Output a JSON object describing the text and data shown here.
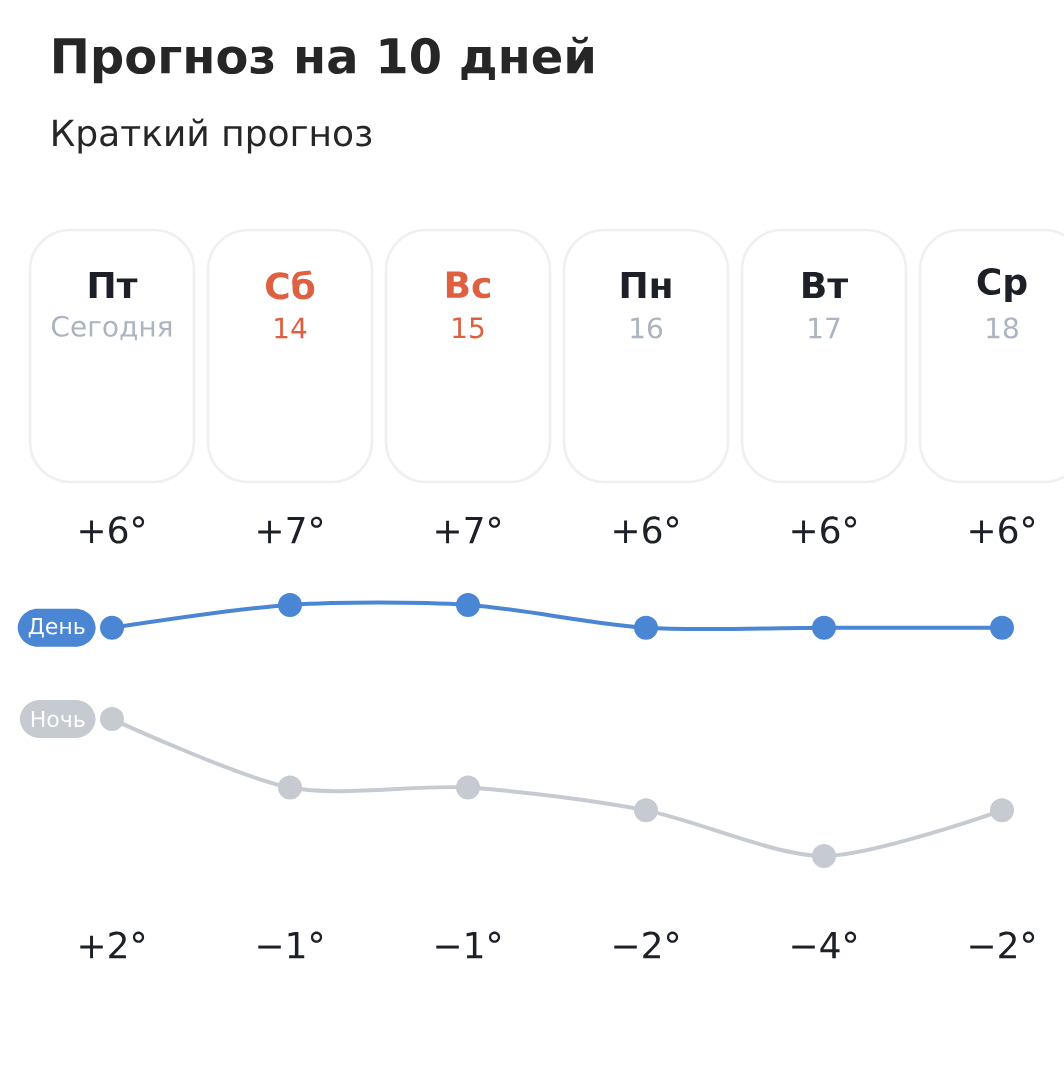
{
  "chart_data": {
    "type": "line",
    "title": "Прогноз на 10 дней",
    "subtitle": "Краткий прогноз",
    "categories": [
      "Пт",
      "Сб",
      "Вс",
      "Пн",
      "Вт",
      "Ср"
    ],
    "annotations": [
      "Сегодня",
      "14",
      "15",
      "16",
      "17",
      "18"
    ],
    "marker": "circle",
    "line_style": "solid",
    "series": [
      {
        "name": "День",
        "color": "#4a86d4",
        "values": [
          6,
          7,
          7,
          6,
          6,
          6
        ],
        "value_labels": [
          "+6°",
          "+7°",
          "+7°",
          "+6°",
          "+6°",
          "+6°"
        ]
      },
      {
        "name": "Ночь",
        "color": "#c6cbd2",
        "values": [
          2,
          -1,
          -1,
          -2,
          -4,
          -2
        ],
        "value_labels": [
          "+2°",
          "−1°",
          "−1°",
          "−2°",
          "−4°",
          "−2°"
        ]
      }
    ]
  }
}
